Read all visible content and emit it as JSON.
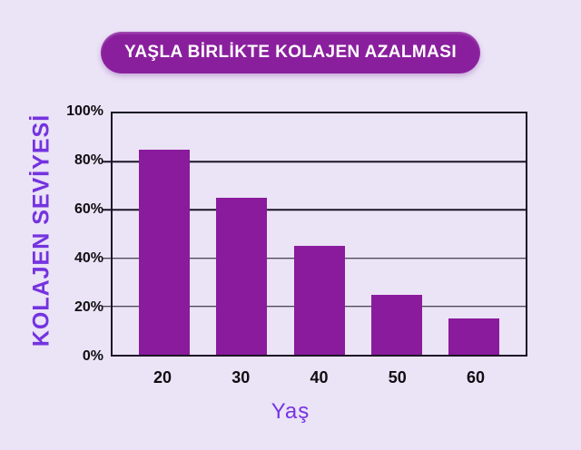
{
  "title_pill": {
    "label": "YAŞLA BİRLİKTE KOLAJEN AZALMASI",
    "bg": "#8A1F9E",
    "text_color": "#FFFFFF"
  },
  "chart_data": {
    "type": "bar",
    "title": "YAŞLA BİRLİKTE KOLAJEN AZALMASI",
    "categories": [
      "20",
      "30",
      "40",
      "50",
      "60"
    ],
    "values": [
      85,
      65,
      45,
      25,
      15
    ],
    "xlabel": "Yaş",
    "ylabel": "KOLAJEN SEVİYESİ",
    "ylim": [
      0,
      100
    ],
    "yticks": [
      0,
      20,
      40,
      60,
      80,
      100
    ],
    "ytick_suffix": "%",
    "grid": true,
    "legend": false,
    "bar_color": "#8A1B9D"
  },
  "colors": {
    "background": "#EBE3F6",
    "bar": "#8A1B9D",
    "pill": "#8A1F9E",
    "accent_purple": "#7433DF",
    "axis_text": "#0E0E12",
    "grid": "#1C1426"
  }
}
